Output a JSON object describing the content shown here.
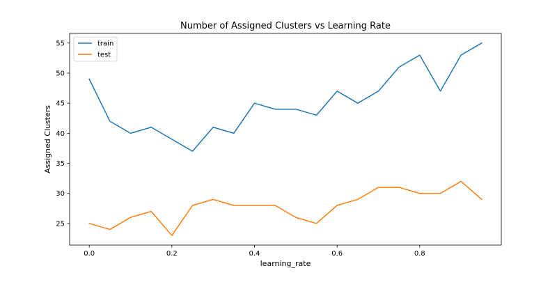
{
  "chart_data": {
    "type": "line",
    "title": "Number of Assigned Clusters vs Learning Rate",
    "xlabel": "learning_rate",
    "ylabel": "Assigned Clusters",
    "x": [
      0.0,
      0.05,
      0.1,
      0.15,
      0.2,
      0.25,
      0.3,
      0.35,
      0.4,
      0.45,
      0.5,
      0.55,
      0.6,
      0.65,
      0.7,
      0.75,
      0.8,
      0.85,
      0.9,
      0.95
    ],
    "series": [
      {
        "name": "train",
        "color": "#1f77b4",
        "values": [
          49,
          42,
          40,
          41,
          39,
          37,
          41,
          40,
          45,
          44,
          44,
          43,
          47,
          45,
          47,
          51,
          53,
          47,
          53,
          55
        ]
      },
      {
        "name": "test",
        "color": "#ff7f0e",
        "values": [
          25,
          24,
          26,
          27,
          23,
          28,
          29,
          28,
          28,
          28,
          26,
          25,
          28,
          29,
          31,
          31,
          30,
          30,
          32,
          29
        ]
      }
    ],
    "xlim": [
      -0.0475,
      0.9975
    ],
    "ylim": [
      21.4,
      56.6
    ],
    "xticks": [
      0.0,
      0.2,
      0.4,
      0.6,
      0.8
    ],
    "xtick_labels": [
      "0.0",
      "0.2",
      "0.4",
      "0.6",
      "0.8"
    ],
    "yticks": [
      25,
      30,
      35,
      40,
      45,
      50,
      55
    ],
    "ytick_labels": [
      "25",
      "30",
      "35",
      "40",
      "45",
      "50",
      "55"
    ],
    "legend": "top-left",
    "grid": false
  }
}
